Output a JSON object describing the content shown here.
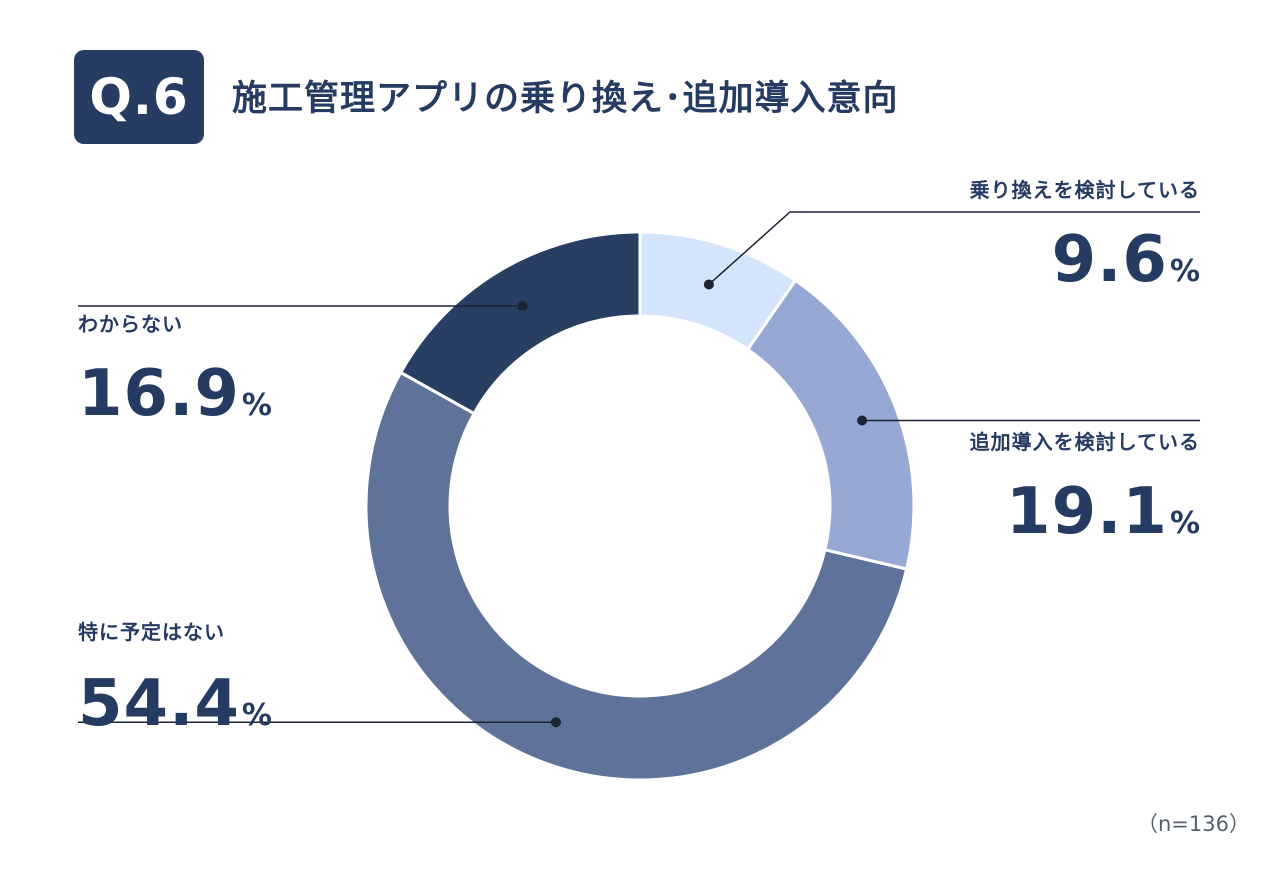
{
  "header": {
    "badge": "Q.6",
    "title": "施工管理アプリの乗り換え･追加導入意向"
  },
  "chart_data": {
    "type": "pie",
    "style": "donut",
    "title": "施工管理アプリの乗り換え･追加導入意向",
    "categories": [
      "乗り換えを検討している",
      "追加導入を検討している",
      "特に予定はない",
      "わからない"
    ],
    "values": [
      9.6,
      19.1,
      54.4,
      16.9
    ],
    "value_labels": [
      "9.6",
      "19.1",
      "54.4",
      "16.9"
    ],
    "unit": "%",
    "colors": [
      "#d4e4fb",
      "#98a8d4",
      "#5f7299",
      "#283e63"
    ],
    "n_label": "（n=136）"
  }
}
